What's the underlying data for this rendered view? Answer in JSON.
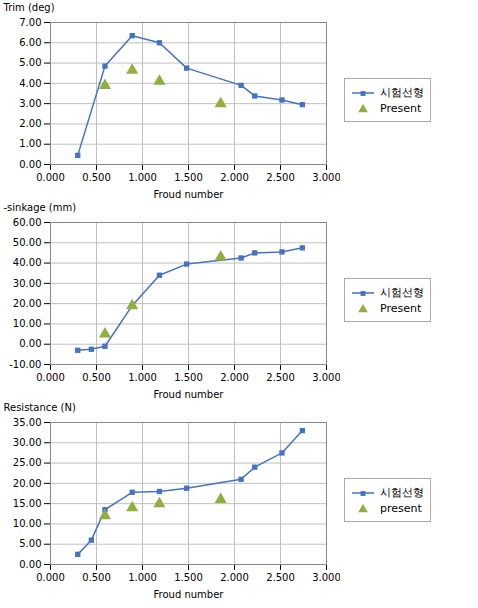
{
  "chart_data": [
    {
      "type": "line",
      "xlabel": "Froud number",
      "ylabel": "Trim (deg)",
      "xlim": [
        0.0,
        3.0
      ],
      "xticks": [
        {
          "value": 0.0,
          "label": "0.000"
        },
        {
          "value": 0.5,
          "label": "0.500"
        },
        {
          "value": 1.0,
          "label": "1.000"
        },
        {
          "value": 1.5,
          "label": "1.500"
        },
        {
          "value": 2.0,
          "label": "2.000"
        },
        {
          "value": 2.5,
          "label": "2.500"
        },
        {
          "value": 3.0,
          "label": "3.000"
        }
      ],
      "ylim": [
        0.0,
        7.0
      ],
      "yticks": [
        {
          "value": 0.0,
          "label": "0.00"
        },
        {
          "value": 1.0,
          "label": "1.00"
        },
        {
          "value": 2.0,
          "label": "2.00"
        },
        {
          "value": 3.0,
          "label": "3.00"
        },
        {
          "value": 4.0,
          "label": "4.00"
        },
        {
          "value": 5.0,
          "label": "5.00"
        },
        {
          "value": 6.0,
          "label": "6.00"
        },
        {
          "value": 7.0,
          "label": "7.00"
        }
      ],
      "grid": true,
      "legend": "right",
      "series": [
        {
          "name": "시험선형",
          "type": "line",
          "marker": "square",
          "color": "#4472C4",
          "x": [
            0.296,
            0.592,
            0.888,
            1.184,
            1.48,
            2.072,
            2.22,
            2.516,
            2.738
          ],
          "values": [
            0.45,
            4.85,
            6.35,
            6.0,
            4.75,
            3.9,
            3.38,
            3.18,
            2.95
          ]
        },
        {
          "name": "Present",
          "type": "scatter",
          "marker": "triangle",
          "color": "#8DB03F",
          "x": [
            0.592,
            0.888,
            1.184,
            1.85
          ],
          "values": [
            3.9,
            4.65,
            4.1,
            3.0
          ]
        }
      ]
    },
    {
      "type": "line",
      "xlabel": "Froud number",
      "ylabel": "-sinkage (mm)",
      "xlim": [
        0.0,
        3.0
      ],
      "xticks": [
        {
          "value": 0.0,
          "label": "0.000"
        },
        {
          "value": 0.5,
          "label": "0.500"
        },
        {
          "value": 1.0,
          "label": "1.000"
        },
        {
          "value": 1.5,
          "label": "1.500"
        },
        {
          "value": 2.0,
          "label": "2.000"
        },
        {
          "value": 2.5,
          "label": "2.500"
        },
        {
          "value": 3.0,
          "label": "3.000"
        }
      ],
      "ylim": [
        -10.0,
        60.0
      ],
      "yticks": [
        {
          "value": -10.0,
          "label": "-10.00"
        },
        {
          "value": 0.0,
          "label": "0.00"
        },
        {
          "value": 10.0,
          "label": "10.00"
        },
        {
          "value": 20.0,
          "label": "20.00"
        },
        {
          "value": 30.0,
          "label": "30.00"
        },
        {
          "value": 40.0,
          "label": "40.00"
        },
        {
          "value": 50.0,
          "label": "50.00"
        },
        {
          "value": 60.0,
          "label": "60.00"
        }
      ],
      "grid": true,
      "legend": "right",
      "series": [
        {
          "name": "시험선형",
          "type": "line",
          "marker": "square",
          "color": "#4472C4",
          "x": [
            0.296,
            0.444,
            0.592,
            0.888,
            1.184,
            1.48,
            2.072,
            2.22,
            2.516,
            2.738
          ],
          "values": [
            -3.0,
            -2.5,
            -1.0,
            19.0,
            34.0,
            39.5,
            42.5,
            45.0,
            45.5,
            47.5
          ]
        },
        {
          "name": "Present",
          "type": "scatter",
          "marker": "triangle",
          "color": "#8DB03F",
          "x": [
            0.592,
            0.888,
            1.85
          ],
          "values": [
            5.0,
            19.0,
            43.0
          ]
        }
      ]
    },
    {
      "type": "line",
      "xlabel": "Froud number",
      "ylabel": "Resistance (N)",
      "xlim": [
        0.0,
        3.0
      ],
      "xticks": [
        {
          "value": 0.0,
          "label": "0.000"
        },
        {
          "value": 0.5,
          "label": "0.500"
        },
        {
          "value": 1.0,
          "label": "1.000"
        },
        {
          "value": 1.5,
          "label": "1.500"
        },
        {
          "value": 2.0,
          "label": "2.000"
        },
        {
          "value": 2.5,
          "label": "2.500"
        },
        {
          "value": 3.0,
          "label": "3.000"
        }
      ],
      "ylim": [
        0.0,
        35.0
      ],
      "yticks": [
        {
          "value": 0.0,
          "label": "0.00"
        },
        {
          "value": 5.0,
          "label": "5.00"
        },
        {
          "value": 10.0,
          "label": "10.00"
        },
        {
          "value": 15.0,
          "label": "15.00"
        },
        {
          "value": 20.0,
          "label": "20.00"
        },
        {
          "value": 25.0,
          "label": "25.00"
        },
        {
          "value": 30.0,
          "label": "30.00"
        },
        {
          "value": 35.0,
          "label": "35.00"
        }
      ],
      "grid": true,
      "legend": "right",
      "series": [
        {
          "name": "시험선형",
          "type": "line",
          "marker": "square",
          "color": "#4472C4",
          "x": [
            0.296,
            0.444,
            0.592,
            0.888,
            1.184,
            1.48,
            2.072,
            2.22,
            2.516,
            2.738
          ],
          "values": [
            2.5,
            6.0,
            13.5,
            17.8,
            18.0,
            18.8,
            21.0,
            24.0,
            27.5,
            33.0
          ]
        },
        {
          "name": "present",
          "type": "scatter",
          "marker": "triangle",
          "color": "#8DB03F",
          "x": [
            0.592,
            0.888,
            1.184,
            1.85
          ],
          "values": [
            12.0,
            14.0,
            15.0,
            16.0
          ]
        }
      ]
    }
  ]
}
